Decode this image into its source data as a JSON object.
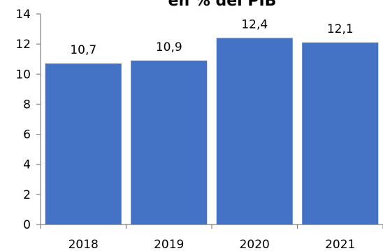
{
  "chart_data": {
    "type": "bar",
    "title": "en % del PIB",
    "categories": [
      "2018",
      "2019",
      "2020",
      "2021"
    ],
    "values": [
      10.7,
      10.9,
      12.4,
      12.1
    ],
    "data_labels": [
      "10,7",
      "10,9",
      "12,4",
      "12,1"
    ],
    "y_ticks": [
      "0",
      "2",
      "4",
      "6",
      "8",
      "10",
      "12",
      "14"
    ],
    "ylim": [
      0,
      14
    ],
    "grid": false,
    "legend": "none",
    "colors": {
      "bar": "#4472C4",
      "axis": "#808080",
      "text": "#000000"
    }
  }
}
